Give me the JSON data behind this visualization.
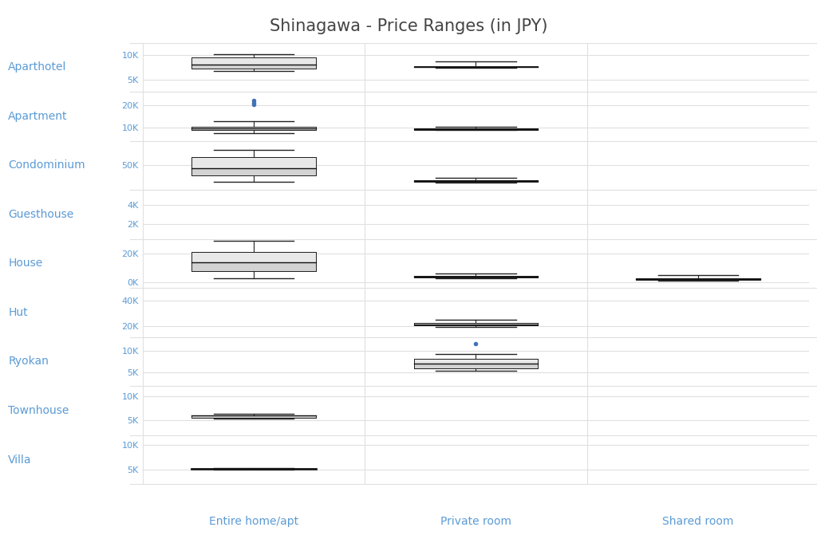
{
  "title": "Shinagawa - Price Ranges (in JPY)",
  "title_color": "#444444",
  "background_color": "#ffffff",
  "grid_color": "#e0e0e0",
  "box_fill_color": "#d3d3d3",
  "box_fill_color2": "#e8e8e8",
  "box_edge_color": "#222222",
  "median_color": "#111111",
  "outlier_color": "#4472b8",
  "label_color": "#5b9bd5",
  "property_types": [
    "Aparthotel",
    "Apartment",
    "Condominium",
    "Guesthouse",
    "House",
    "Hut",
    "Ryokan",
    "Townhouse",
    "Villa"
  ],
  "room_types": [
    "Entire home/apt",
    "Private room",
    "Shared room"
  ],
  "rows": {
    "Aparthotel": {
      "yticks": [
        5000,
        10000
      ],
      "ytick_labels": [
        "5K",
        "10K"
      ],
      "ylim": [
        2500,
        12500
      ],
      "Entire home/apt": {
        "q1": 7200,
        "median": 8000,
        "q3": 9500,
        "wlo": 6800,
        "whi": 10200,
        "out": []
      },
      "Private room": {
        "q1": 7500,
        "median": 7600,
        "q3": 7700,
        "wlo": 7400,
        "whi": 8700,
        "out": []
      },
      "Shared room": null
    },
    "Apartment": {
      "yticks": [
        10000,
        20000
      ],
      "ytick_labels": [
        "10K",
        "20K"
      ],
      "ylim": [
        4000,
        26000
      ],
      "Entire home/apt": {
        "q1": 8800,
        "median": 9500,
        "q3": 10500,
        "wlo": 7500,
        "whi": 13000,
        "out": [
          20500,
          21200,
          22000
        ]
      },
      "Private room": {
        "q1": 9000,
        "median": 9300,
        "q3": 9700,
        "wlo": 8800,
        "whi": 10500,
        "out": []
      },
      "Shared room": null
    },
    "Condominium": {
      "yticks": [
        50000
      ],
      "ytick_labels": [
        "50K"
      ],
      "ylim": [
        33000,
        66000
      ],
      "Entire home/apt": {
        "q1": 43000,
        "median": 47500,
        "q3": 55000,
        "wlo": 38500,
        "whi": 60000,
        "out": []
      },
      "Private room": {
        "q1": 38700,
        "median": 39200,
        "q3": 39800,
        "wlo": 38200,
        "whi": 41000,
        "out": []
      },
      "Shared room": null
    },
    "Guesthouse": {
      "yticks": [
        2000,
        4000
      ],
      "ytick_labels": [
        "2K",
        "4K"
      ],
      "ylim": [
        500,
        5500
      ],
      "Entire home/apt": null,
      "Private room": null,
      "Shared room": null
    },
    "House": {
      "yticks": [
        0,
        20000
      ],
      "ytick_labels": [
        "0K",
        "20K"
      ],
      "ylim": [
        -4000,
        30000
      ],
      "Entire home/apt": {
        "q1": 8000,
        "median": 14000,
        "q3": 21000,
        "wlo": 2500,
        "whi": 28500,
        "out": []
      },
      "Private room": {
        "q1": 3200,
        "median": 3800,
        "q3": 4500,
        "wlo": 2800,
        "whi": 6200,
        "out": []
      },
      "Shared room": {
        "q1": 1500,
        "median": 2000,
        "q3": 2800,
        "wlo": 900,
        "whi": 5000,
        "out": []
      }
    },
    "Hut": {
      "yticks": [
        20000,
        40000
      ],
      "ytick_labels": [
        "20K",
        "40K"
      ],
      "ylim": [
        11000,
        50000
      ],
      "Entire home/apt": null,
      "Private room": {
        "q1": 20500,
        "median": 21200,
        "q3": 22000,
        "wlo": 19000,
        "whi": 24500,
        "out": []
      },
      "Shared room": null
    },
    "Ryokan": {
      "yticks": [
        5000,
        10000
      ],
      "ytick_labels": [
        "5K",
        "10K"
      ],
      "ylim": [
        2000,
        13000
      ],
      "Entire home/apt": null,
      "Private room": {
        "q1": 6000,
        "median": 7000,
        "q3": 8200,
        "wlo": 5500,
        "whi": 9200,
        "out": [
          11500
        ]
      },
      "Shared room": null
    },
    "Townhouse": {
      "yticks": [
        5000,
        10000
      ],
      "ytick_labels": [
        "5K",
        "10K"
      ],
      "ylim": [
        2000,
        12000
      ],
      "Entire home/apt": {
        "q1": 5500,
        "median": 6000,
        "q3": 6100,
        "wlo": 5300,
        "whi": 6300,
        "out": []
      },
      "Private room": null,
      "Shared room": null
    },
    "Villa": {
      "yticks": [
        5000,
        10000
      ],
      "ytick_labels": [
        "5K",
        "10K"
      ],
      "ylim": [
        2000,
        12000
      ],
      "Entire home/apt": {
        "q1": 5000,
        "median": 5100,
        "q3": 5150,
        "wlo": 4900,
        "whi": 5250,
        "out": []
      },
      "Private room": null,
      "Shared room": null
    }
  }
}
